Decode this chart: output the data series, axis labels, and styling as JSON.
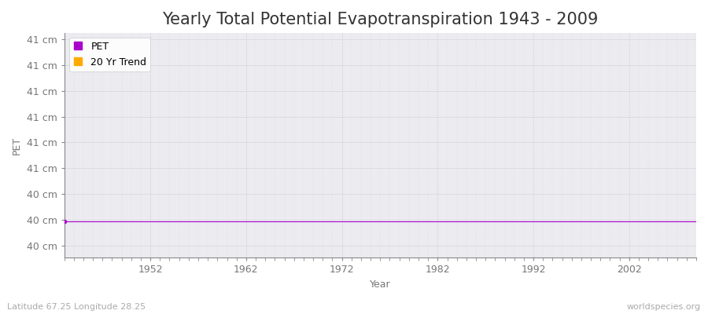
{
  "title": "Yearly Total Potential Evapotranspiration 1943 - 2009",
  "xlabel": "Year",
  "ylabel": "PET",
  "xlim": [
    1943,
    2009
  ],
  "ylim_bottom": 39.7,
  "ylim_top": 41.55,
  "ytick_labels": [
    "40 cm",
    "40 cm",
    "40 cm",
    "41 cm",
    "41 cm",
    "41 cm",
    "41 cm",
    "41 cm",
    "41 cm"
  ],
  "xticks": [
    1952,
    1962,
    1972,
    1982,
    1992,
    2002
  ],
  "figure_bg": "#ffffff",
  "plot_bg": "#ebebf0",
  "grid_color": "#d0d0d8",
  "pet_color": "#aa00cc",
  "trend_color": "#ffaa00",
  "legend_labels": [
    "PET",
    "20 Yr Trend"
  ],
  "subtitle_left": "Latitude 67.25 Longitude 28.25",
  "subtitle_right": "worldspecies.org",
  "title_fontsize": 15,
  "axis_label_fontsize": 9,
  "tick_fontsize": 9,
  "legend_fontsize": 9,
  "subtitle_fontsize": 8,
  "pet_data_y": 40.0
}
